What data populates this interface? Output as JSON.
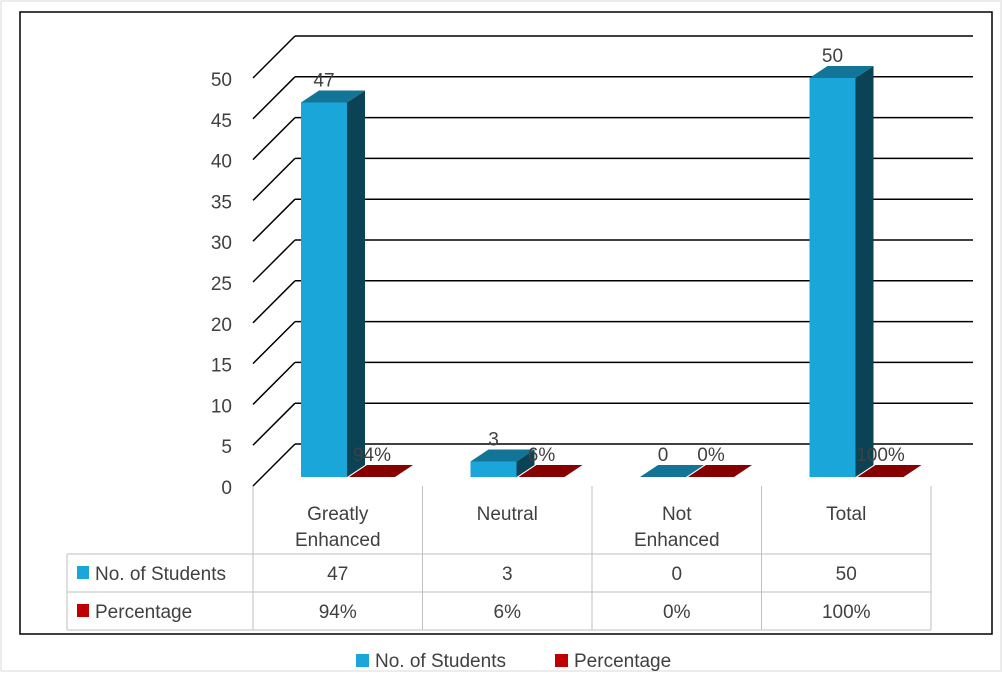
{
  "chart_data": {
    "type": "bar",
    "title": "",
    "xlabel": "",
    "ylabel": "",
    "ylim": [
      0,
      50
    ],
    "yticks": [
      "0",
      "5",
      "10",
      "15",
      "20",
      "25",
      "30",
      "35",
      "40",
      "45",
      "50"
    ],
    "categories": [
      [
        "Greatly",
        "Enhanced"
      ],
      [
        "Neutral"
      ],
      [
        "Not",
        "Enhanced"
      ],
      [
        "Total"
      ]
    ],
    "series": [
      {
        "name": "No. of Students",
        "values": [
          47,
          3,
          0,
          50
        ],
        "labels": [
          "47",
          "3",
          "0",
          "50"
        ],
        "color": "#1AA6D8"
      },
      {
        "name": "Percentage",
        "values": [
          0.94,
          0.06,
          0,
          1
        ],
        "labels": [
          "94%",
          "6%",
          "0%",
          "100%"
        ],
        "color": "#C00000"
      }
    ],
    "grid": true,
    "legend_placement": "bottom",
    "data_table": true
  }
}
